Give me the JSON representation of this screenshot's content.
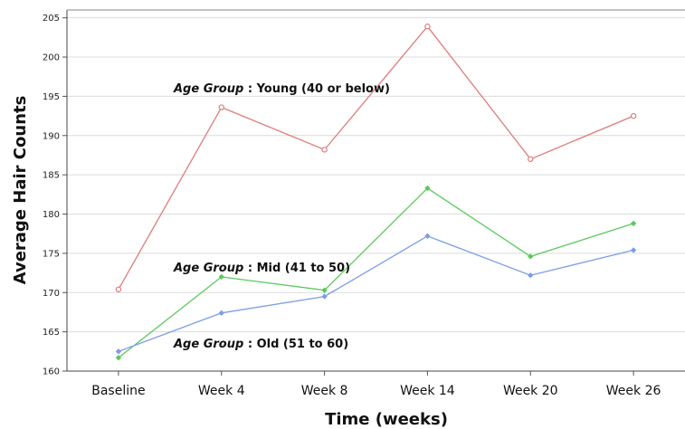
{
  "chart_data": {
    "type": "line",
    "title": "",
    "xlabel": "Time (weeks)",
    "ylabel": "Average Hair Counts",
    "categories": [
      "Baseline",
      "Week 4",
      "Week 8",
      "Week 14",
      "Week 20",
      "Week 26"
    ],
    "ylim": [
      160,
      206
    ],
    "yticks": [
      160,
      165,
      170,
      175,
      180,
      185,
      190,
      195,
      200,
      205
    ],
    "grid": "horizontal",
    "series": [
      {
        "name": "Young (40 or below)",
        "color": "#e07b7b",
        "marker": "circle",
        "values": [
          170.4,
          193.6,
          188.2,
          203.9,
          187.0,
          192.5
        ]
      },
      {
        "name": "Mid (41 to 50)",
        "color": "#5cc85c",
        "marker": "diamond",
        "values": [
          161.7,
          172.0,
          170.3,
          183.3,
          174.6,
          178.8
        ]
      },
      {
        "name": "Old (51 to 60)",
        "color": "#7a9de8",
        "marker": "diamond",
        "values": [
          162.5,
          167.4,
          169.5,
          177.2,
          172.2,
          175.4
        ]
      }
    ],
    "annotations": [
      {
        "prefix": "Age Group",
        "separator": " : ",
        "text": "Young (40 or below)"
      },
      {
        "prefix": "Age Group",
        "separator": " : ",
        "text": "Mid (41 to 50)"
      },
      {
        "prefix": "Age Group",
        "separator": " : ",
        "text": "Old (51 to 60)"
      }
    ]
  }
}
